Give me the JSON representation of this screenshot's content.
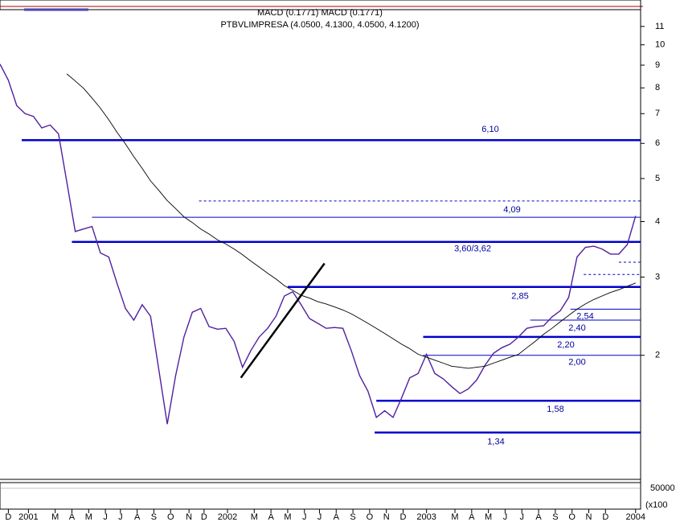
{
  "chart_data": {
    "type": "line",
    "header": "MACD (0.1771) MACD (0.1771)",
    "title": "PTBVLIMPRESA (4.0500, 4.1300, 4.0500, 4.1200)",
    "log_scale": true,
    "xlim": [
      0,
      38.3
    ],
    "ylim": [
      1.06,
      12
    ],
    "yticks": [
      2,
      3,
      4,
      5,
      6,
      7,
      8,
      9,
      10,
      11
    ],
    "xticks": [
      {
        "value": 0.5,
        "label": "D"
      },
      {
        "value": 1.7,
        "label": "2001"
      },
      {
        "value": 3.3,
        "label": "M"
      },
      {
        "value": 4.3,
        "label": "A"
      },
      {
        "value": 5.3,
        "label": "M"
      },
      {
        "value": 6.3,
        "label": "J"
      },
      {
        "value": 7.2,
        "label": "J"
      },
      {
        "value": 8.2,
        "label": "A"
      },
      {
        "value": 9.2,
        "label": "S"
      },
      {
        "value": 10.2,
        "label": "O"
      },
      {
        "value": 11.3,
        "label": "N"
      },
      {
        "value": 12.2,
        "label": "D"
      },
      {
        "value": 13.6,
        "label": "2002"
      },
      {
        "value": 15.2,
        "label": "M"
      },
      {
        "value": 16.2,
        "label": "A"
      },
      {
        "value": 17.2,
        "label": "M"
      },
      {
        "value": 18.2,
        "label": "J"
      },
      {
        "value": 19.1,
        "label": "J"
      },
      {
        "value": 20.1,
        "label": "A"
      },
      {
        "value": 21.1,
        "label": "S"
      },
      {
        "value": 22.1,
        "label": "O"
      },
      {
        "value": 23.1,
        "label": "N"
      },
      {
        "value": 24.1,
        "label": "D"
      },
      {
        "value": 25.5,
        "label": "2003"
      },
      {
        "value": 27.2,
        "label": "M"
      },
      {
        "value": 28.2,
        "label": "A"
      },
      {
        "value": 29.2,
        "label": "M"
      },
      {
        "value": 30.2,
        "label": "J"
      },
      {
        "value": 31.2,
        "label": "J"
      },
      {
        "value": 32.2,
        "label": "A"
      },
      {
        "value": 33.2,
        "label": "S"
      },
      {
        "value": 34.2,
        "label": "O"
      },
      {
        "value": 35.2,
        "label": "N"
      },
      {
        "value": 36.2,
        "label": "D"
      },
      {
        "value": 38.0,
        "label": "2004"
      }
    ],
    "x": [
      0,
      0.5,
      1,
      1.5,
      2,
      2.5,
      3,
      3.5,
      4,
      4.5,
      5,
      5.5,
      6,
      6.5,
      7,
      7.5,
      8,
      8.5,
      9,
      9.5,
      10,
      10.5,
      11,
      11.5,
      12,
      12.5,
      13,
      13.5,
      14,
      14.5,
      15,
      15.5,
      16,
      16.5,
      17,
      17.5,
      18,
      18.5,
      19,
      19.5,
      20,
      20.5,
      21,
      21.5,
      22,
      22.5,
      23,
      23.5,
      24,
      24.5,
      25,
      25.5,
      26,
      26.5,
      27,
      27.5,
      28,
      28.5,
      29,
      29.5,
      30,
      30.5,
      31,
      31.5,
      32,
      32.5,
      33,
      33.5,
      34,
      34.5,
      35,
      35.5,
      36,
      36.5,
      37,
      37.5,
      38
    ],
    "series": [
      {
        "color": "#5020a0",
        "width": 1.4,
        "values": [
          9.05,
          8.32,
          7.3,
          7.0,
          6.9,
          6.5,
          6.6,
          6.3,
          4.9,
          3.8,
          3.85,
          3.9,
          3.4,
          3.33,
          2.9,
          2.55,
          2.4,
          2.6,
          2.45,
          1.85,
          1.4,
          1.8,
          2.2,
          2.5,
          2.55,
          2.32,
          2.29,
          2.3,
          2.15,
          1.88,
          2.05,
          2.2,
          2.3,
          2.45,
          2.72,
          2.78,
          2.6,
          2.42,
          2.36,
          2.3,
          2.31,
          2.3,
          2.05,
          1.8,
          1.66,
          1.45,
          1.5,
          1.45,
          1.6,
          1.78,
          1.82,
          2.01,
          1.82,
          1.77,
          1.7,
          1.64,
          1.68,
          1.76,
          1.9,
          2.02,
          2.08,
          2.12,
          2.2,
          2.3,
          2.32,
          2.33,
          2.44,
          2.52,
          2.7,
          3.33,
          3.5,
          3.52,
          3.47,
          3.38,
          3.38,
          3.55,
          4.12
        ]
      },
      {
        "color": "#000000",
        "width": 0.9,
        "values": [
          null,
          null,
          null,
          null,
          null,
          null,
          null,
          null,
          8.6,
          8.29,
          7.98,
          7.59,
          7.2,
          6.78,
          6.35,
          5.98,
          5.6,
          5.27,
          4.94,
          4.7,
          4.46,
          4.28,
          4.1,
          3.98,
          3.85,
          3.75,
          3.64,
          3.56,
          3.47,
          3.37,
          3.26,
          3.16,
          3.06,
          2.97,
          2.87,
          2.8,
          2.73,
          2.69,
          2.64,
          2.61,
          2.57,
          2.53,
          2.48,
          2.42,
          2.36,
          2.3,
          2.24,
          2.18,
          2.12,
          2.07,
          2.01,
          1.98,
          1.95,
          1.92,
          1.89,
          1.88,
          1.87,
          1.88,
          1.89,
          1.92,
          1.95,
          1.98,
          2.01,
          2.08,
          2.15,
          2.23,
          2.3,
          2.38,
          2.46,
          2.54,
          2.61,
          2.67,
          2.72,
          2.77,
          2.81,
          2.86,
          2.91
        ]
      }
    ],
    "trendline": {
      "x": [
        14.4,
        19.4
      ],
      "values": [
        1.78,
        3.22
      ]
    },
    "levels": [
      {
        "value": 6.1,
        "label": "6,10",
        "from": 1.3,
        "style": "thick"
      },
      {
        "value": 4.09,
        "label": "4,09",
        "from": 5.5,
        "style": "thin"
      },
      {
        "value": 3.6,
        "label": "3,60/3,62",
        "from": 4.3,
        "style": "thick"
      },
      {
        "value": 2.85,
        "label": "2,85",
        "from": 17.2,
        "style": "thick"
      },
      {
        "value": 2.54,
        "label": "2,54",
        "from": 34.1,
        "style": "thin"
      },
      {
        "value": 2.4,
        "label": "2,40",
        "from": 31.7,
        "style": "thin"
      },
      {
        "value": 2.2,
        "label": "2,20",
        "from": 25.3,
        "style": "thick"
      },
      {
        "value": 2.0,
        "label": "2,00",
        "from": 25.3,
        "style": "thin"
      },
      {
        "value": 1.58,
        "label": "1,58",
        "from": 22.5,
        "style": "thick"
      },
      {
        "value": 1.34,
        "label": "1,34",
        "from": 22.4,
        "style": "thick"
      },
      {
        "value": 4.45,
        "from": 11.9,
        "style": "dashed"
      },
      {
        "value": 3.24,
        "from": 37.0,
        "style": "dashed"
      },
      {
        "value": 3.04,
        "from": 34.9,
        "style": "dashed"
      }
    ],
    "volume_panel": {
      "ticks": [
        50000
      ],
      "unit": "(x100"
    }
  }
}
